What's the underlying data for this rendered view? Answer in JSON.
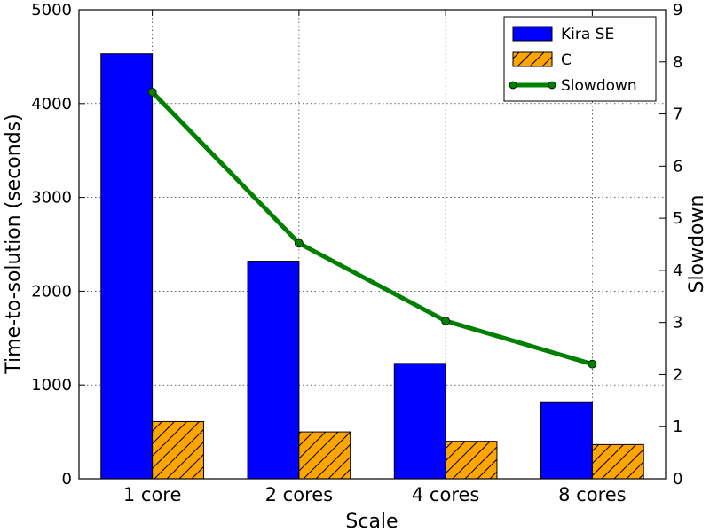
{
  "chart_data": {
    "type": "bar",
    "categories": [
      "1 core",
      "2 cores",
      "4 cores",
      "8 cores"
    ],
    "xlabel": "Scale",
    "ylabel": "Time-to-solution (seconds)",
    "y2label": "Slowdown",
    "ylim": [
      0,
      5000
    ],
    "y2lim": [
      0,
      9
    ],
    "yticks": [
      "0",
      "1000",
      "2000",
      "3000",
      "4000",
      "5000"
    ],
    "y2ticks": [
      "0",
      "1",
      "2",
      "3",
      "4",
      "5",
      "6",
      "7",
      "8",
      "9"
    ],
    "grid": true,
    "legend_position": "top-right",
    "series": [
      {
        "name": "Kira SE",
        "type": "bar",
        "color": "#0000ff",
        "pattern": "solid",
        "values": [
          4530,
          2320,
          1230,
          820
        ]
      },
      {
        "name": "C",
        "type": "bar",
        "color": "#ffa500",
        "pattern": "hatch",
        "values": [
          610,
          500,
          400,
          365
        ]
      },
      {
        "name": "Slowdown",
        "type": "line",
        "axis": "right",
        "color": "#008000",
        "values": [
          7.42,
          4.52,
          3.03,
          2.2
        ]
      }
    ]
  }
}
